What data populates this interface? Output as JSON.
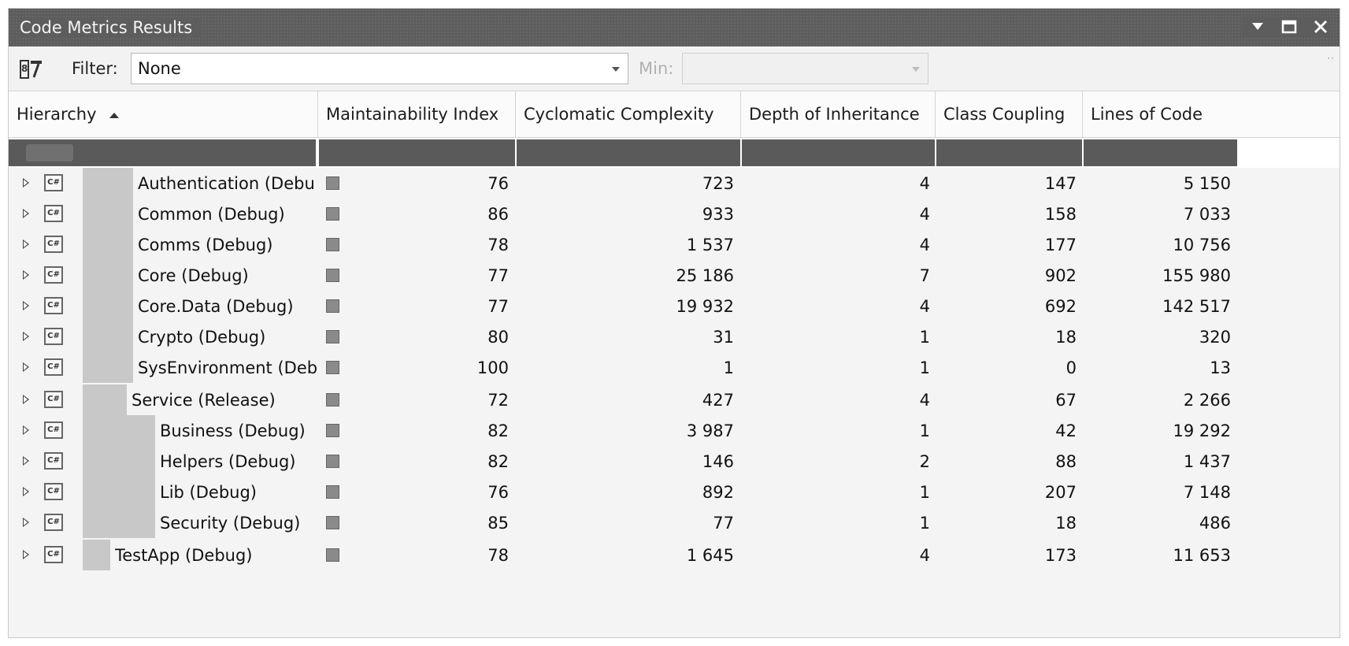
{
  "window": {
    "title": "Code Metrics Results"
  },
  "toolbar": {
    "filter_label": "Filter:",
    "filter_value": "None",
    "min_label": "Min:",
    "min_value": ""
  },
  "columns": [
    {
      "label": "Hierarchy"
    },
    {
      "label": "Maintainability Index"
    },
    {
      "label": "Cyclomatic Complexity"
    },
    {
      "label": "Depth of Inheritance"
    },
    {
      "label": "Class Coupling"
    },
    {
      "label": "Lines of Code"
    }
  ],
  "rows": [
    {
      "name": "Authentication (Debu",
      "level": 2,
      "mi": "76",
      "cc": "723",
      "di": "4",
      "cp": "147",
      "loc": "5 150"
    },
    {
      "name": "Common (Debug)",
      "level": 2,
      "mi": "86",
      "cc": "933",
      "di": "4",
      "cp": "158",
      "loc": "7 033"
    },
    {
      "name": "Comms (Debug)",
      "level": 2,
      "mi": "78",
      "cc": "1 537",
      "di": "4",
      "cp": "177",
      "loc": "10 756"
    },
    {
      "name": "Core (Debug)",
      "level": 2,
      "mi": "77",
      "cc": "25 186",
      "di": "7",
      "cp": "902",
      "loc": "155 980"
    },
    {
      "name": "Core.Data (Debug)",
      "level": 2,
      "mi": "77",
      "cc": "19 932",
      "di": "4",
      "cp": "692",
      "loc": "142 517"
    },
    {
      "name": "Crypto (Debug)",
      "level": 2,
      "mi": "80",
      "cc": "31",
      "di": "1",
      "cp": "18",
      "loc": "320"
    },
    {
      "name": "SysEnvironment (Deb",
      "level": 2,
      "mi": "100",
      "cc": "1",
      "di": "1",
      "cp": "0",
      "loc": "13"
    },
    {
      "name": "Service (Release)",
      "level": 1,
      "mi": "72",
      "cc": "427",
      "di": "4",
      "cp": "67",
      "loc": "2 266"
    },
    {
      "name": "Business (Debug)",
      "level": 3,
      "mi": "82",
      "cc": "3 987",
      "di": "1",
      "cp": "42",
      "loc": "19 292"
    },
    {
      "name": "Helpers (Debug)",
      "level": 3,
      "mi": "82",
      "cc": "146",
      "di": "2",
      "cp": "88",
      "loc": "1 437"
    },
    {
      "name": "Lib (Debug)",
      "level": 3,
      "mi": "76",
      "cc": "892",
      "di": "1",
      "cp": "207",
      "loc": "7 148"
    },
    {
      "name": "Security (Debug)",
      "level": 3,
      "mi": "85",
      "cc": "77",
      "di": "1",
      "cp": "18",
      "loc": "486"
    },
    {
      "name": "TestApp (Debug)",
      "level": 0,
      "mi": "78",
      "cc": "1 645",
      "di": "4",
      "cp": "173",
      "loc": "11 653"
    }
  ],
  "icons": {
    "toolbar": "metrics-calc-icon",
    "row_type": "csharp-project-icon",
    "mi_indicator": "maintainability-square-icon"
  }
}
